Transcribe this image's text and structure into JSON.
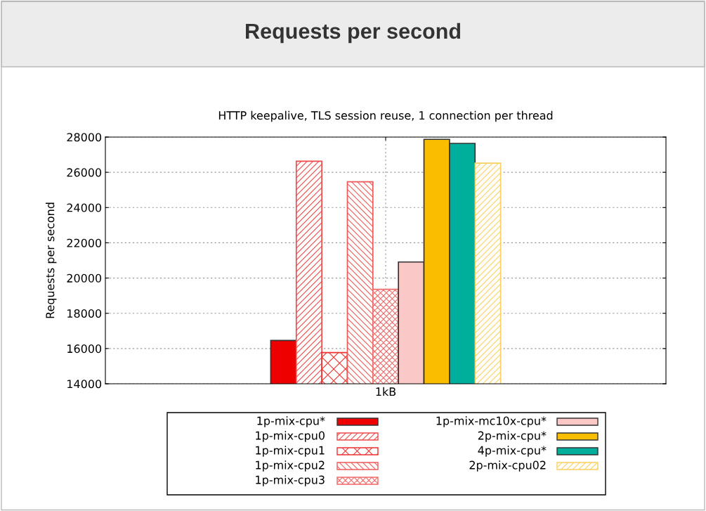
{
  "chart_data": {
    "type": "bar",
    "title": "Requests per second",
    "subtitle": "HTTP keepalive, TLS session reuse, 1 connection per thread",
    "ylabel": "Requests per second",
    "categories": [
      "1kB"
    ],
    "series": [
      {
        "name": "1p-mix-cpu*",
        "color": "#ee0000",
        "values": [
          16460
        ]
      },
      {
        "name": "1p-mix-cpu0",
        "color": "#f04848",
        "values": [
          26630
        ]
      },
      {
        "name": "1p-mix-cpu1",
        "color": "#f03030",
        "values": [
          15770
        ]
      },
      {
        "name": "1p-mix-cpu2",
        "color": "#f05858",
        "values": [
          25460
        ]
      },
      {
        "name": "1p-mix-cpu3",
        "color": "#f06868",
        "values": [
          19360
        ]
      },
      {
        "name": "1p-mix-mc10x-cpu*",
        "color": "#fbc8c8",
        "values": [
          20910
        ]
      },
      {
        "name": "2p-mix-cpu*",
        "color": "#fbbd00",
        "values": [
          27870
        ]
      },
      {
        "name": "4p-mix-cpu*",
        "color": "#00ae9c",
        "values": [
          27640
        ]
      },
      {
        "name": "2p-mix-cpu02",
        "color": "#fcd060",
        "values": [
          26520
        ]
      }
    ],
    "ylim": [
      14000,
      28000
    ],
    "yticks": [
      14000,
      16000,
      18000,
      20000,
      22000,
      24000,
      26000,
      28000
    ],
    "grid": true,
    "legend": "bottom"
  }
}
